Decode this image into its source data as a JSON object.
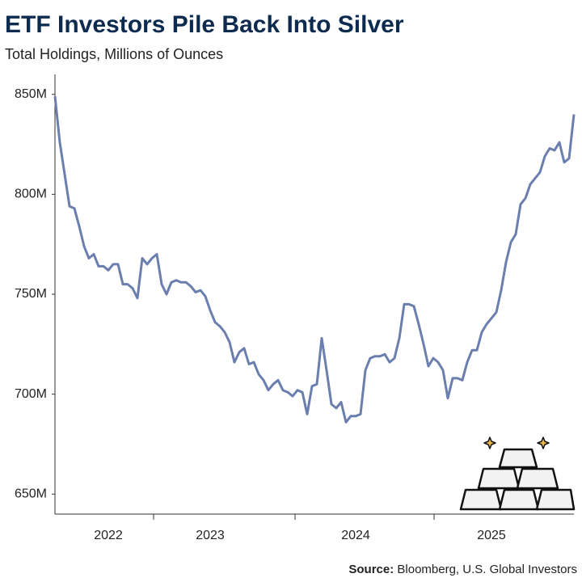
{
  "chart_data": {
    "type": "line",
    "title": "ETF Investors Pile Back Into Silver",
    "subtitle": "Total Holdings, Millions of Ounces",
    "source_label": "Source:",
    "source": "Bloomberg, U.S. Global Investors",
    "categories": [
      null,
      null,
      null,
      null,
      null,
      null,
      null,
      null,
      null,
      null,
      null,
      "2022",
      null,
      null,
      null,
      null,
      null,
      null,
      null,
      null,
      null,
      null,
      null,
      null,
      null,
      null,
      null,
      null,
      null,
      null,
      null,
      null,
      "2023",
      null,
      null,
      null,
      null,
      null,
      null,
      null,
      null,
      null,
      null,
      null,
      null,
      null,
      null,
      null,
      null,
      null,
      null,
      null,
      null,
      null,
      null,
      null,
      null,
      null,
      null,
      null,
      null,
      null,
      "2024",
      null,
      null,
      null,
      null,
      null,
      null,
      null,
      null,
      null,
      null,
      null,
      null,
      null,
      null,
      null,
      null,
      null,
      null,
      null,
      null,
      null,
      null,
      null,
      null,
      null,
      null,
      null,
      "2025",
      null,
      null,
      null,
      null,
      null,
      null,
      null,
      null,
      null,
      null,
      null,
      null,
      null,
      null,
      null,
      null,
      null
    ],
    "series": [
      {
        "name": "Total Holdings",
        "color": "#6b7fae",
        "values": [
          849,
          826,
          810,
          794,
          793,
          784,
          774,
          768,
          770,
          764,
          764,
          762,
          765,
          765,
          755,
          755,
          753,
          748,
          768,
          765,
          768,
          770,
          755,
          750,
          756,
          757,
          756,
          756,
          754,
          751,
          752,
          749,
          742,
          736,
          734,
          731,
          726,
          716,
          721,
          723,
          715,
          716,
          710,
          707,
          702,
          705,
          707,
          702,
          701,
          699,
          702,
          701,
          690,
          704,
          705,
          728,
          712,
          695,
          693,
          696,
          686,
          689,
          689,
          690,
          712,
          718,
          719,
          719,
          720,
          716,
          718,
          728,
          745,
          745,
          744,
          735,
          725,
          714,
          718,
          716,
          712,
          698,
          708,
          708,
          707,
          716,
          722,
          722,
          731,
          735,
          738,
          741,
          752,
          766,
          776,
          780,
          795,
          798,
          805,
          808,
          811,
          819,
          823,
          822,
          826,
          816,
          818,
          840
        ]
      }
    ],
    "ylim": [
      640,
      860
    ],
    "yticks": [
      {
        "value": 650,
        "label": "650M"
      },
      {
        "value": 700,
        "label": "700M"
      },
      {
        "value": 750,
        "label": "750M"
      },
      {
        "value": 800,
        "label": "800M"
      },
      {
        "value": 850,
        "label": "850M"
      }
    ],
    "grid": false
  }
}
